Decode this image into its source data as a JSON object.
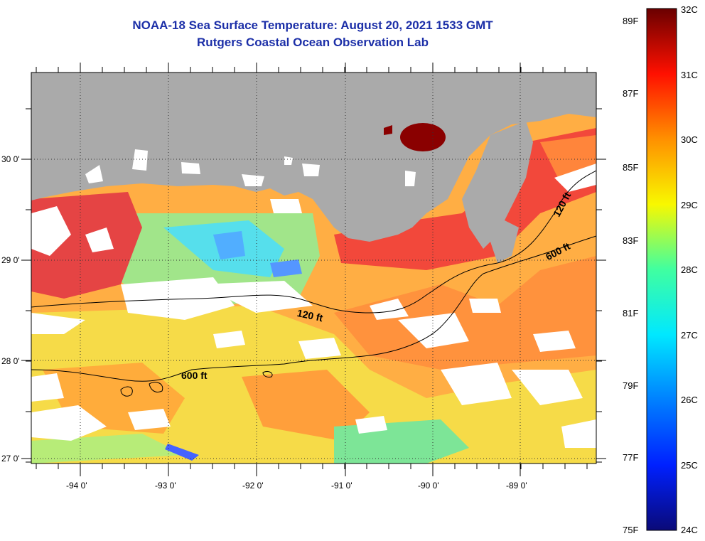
{
  "title_line1": "NOAA-18 Sea Surface Temperature:  August 20, 2021 1533 GMT",
  "title_line2": "Rutgers Coastal Ocean Observation Lab",
  "lat_labels": [
    "30 0'",
    "29 0'",
    "28 0'",
    "27 0'"
  ],
  "lon_labels": [
    "-94 0'",
    "-93 0'",
    "-92 0'",
    "-91 0'",
    "-90 0'",
    "-89 0'"
  ],
  "contours": [
    {
      "label": "120 ft",
      "lx": 420,
      "ly": 432,
      "rot": 12
    },
    {
      "label": "600 ft",
      "lx": 255,
      "ly": 520,
      "rot": 0
    },
    {
      "label": "600 ft",
      "lx": 765,
      "ly": 355,
      "rot": -28
    },
    {
      "label": "120 ft",
      "lx": 775,
      "ly": 300,
      "rot": -62
    }
  ],
  "colorbar": {
    "celsius": [
      "32C",
      "31C",
      "30C",
      "29C",
      "28C",
      "27C",
      "26C",
      "25C",
      "24C"
    ],
    "fahrenheit": [
      "89F",
      "87F",
      "85F",
      "83F",
      "81F",
      "79F",
      "77F",
      "75F"
    ],
    "colors": [
      "#0a0a78",
      "#0020ff",
      "#0080ff",
      "#00e8ff",
      "#40ffa0",
      "#f8f800",
      "#ff9000",
      "#ff1000",
      "#6a0000"
    ]
  },
  "palette": {
    "land": "#aaaaaa",
    "cloud": "#ffffff"
  }
}
